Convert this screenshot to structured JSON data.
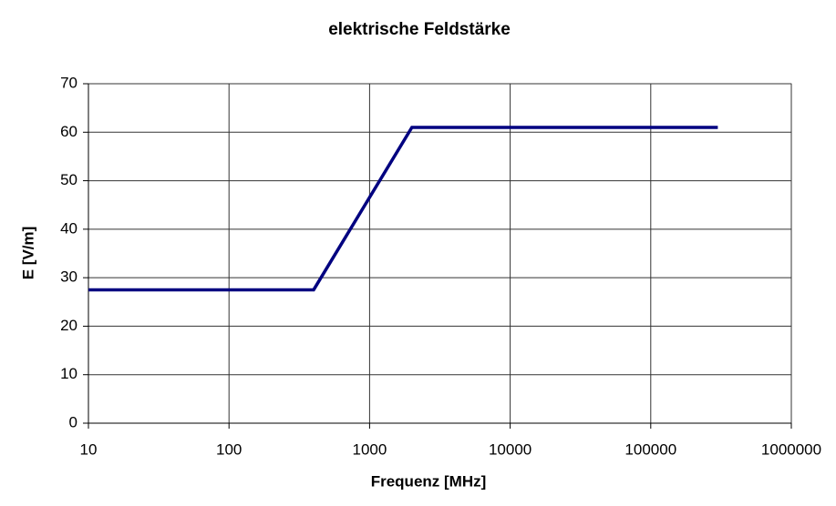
{
  "chart_data": {
    "type": "line",
    "title": "elektrische Feldstärke",
    "xlabel": "Frequenz [MHz]",
    "ylabel": "E [V/m]",
    "x": [
      10,
      400,
      2000,
      300000
    ],
    "values": [
      27.5,
      27.5,
      61,
      61
    ],
    "color": "#000080",
    "xscale": "log",
    "xlim": [
      10,
      1000000
    ],
    "xticks": [
      10,
      100,
      1000,
      10000,
      100000,
      1000000
    ],
    "ylim": [
      0,
      70
    ],
    "yticks": [
      0,
      10,
      20,
      30,
      40,
      50,
      60,
      70
    ],
    "grid": true
  }
}
